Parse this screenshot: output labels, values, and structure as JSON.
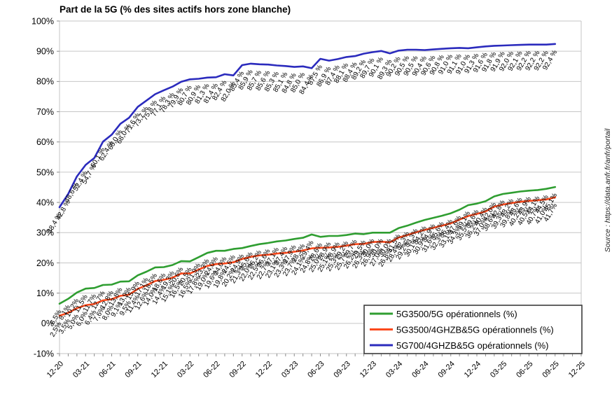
{
  "title": "Part de la 5G (% des sites actifs hors zone blanche)",
  "source_note": "Source : https://data.anfr.fr/anfr/portail",
  "chart_data": {
    "type": "line",
    "title": "Part de la 5G (% des sites actifs hors zone blanche)",
    "xlabel": "",
    "ylabel": "",
    "ylim": [
      -10,
      100
    ],
    "y_tick_step": 10,
    "y_tick_labels": [
      "100%",
      "90%",
      "80%",
      "70%",
      "60%",
      "50%",
      "40%",
      "30%",
      "20%",
      "10%",
      "0%",
      "-10%"
    ],
    "x_monthly_slots": 61,
    "x_first_month": "12-20",
    "x_last_data_month": "09-25",
    "x_tick_every_months": 3,
    "x_tick_labels": [
      "12-20",
      "03-21",
      "06-21",
      "09-21",
      "12-21",
      "03-22",
      "06-22",
      "09-22",
      "12-22",
      "03-23",
      "06-23",
      "09-23",
      "12-23",
      "03-24",
      "06-24",
      "09-24",
      "12-24",
      "03-25",
      "06-25",
      "09-25",
      "12-25"
    ],
    "grid": true,
    "legend_position": "inside-bottom-right",
    "decimal_separator": ",",
    "colors": {
      "grid": "#c6c6c6",
      "tick": "#8c8c8c",
      "legend_border": "#3c3c3c",
      "label_text": "#000000"
    },
    "series": [
      {
        "name": "5G3500/5G opérationnels (%)",
        "color": "#2f9e31",
        "label_suffix": "%",
        "values": [
          6.5,
          8.1,
          10.2,
          11.5,
          11.7,
          12.7,
          12.8,
          13.8,
          13.9,
          15.9,
          17.1,
          18.5,
          18.6,
          19.3,
          20.6,
          20.5,
          21.9,
          23.3,
          24.0,
          24.0,
          24.6,
          24.9,
          25.6,
          26.2,
          26.6,
          27.1,
          27.4,
          27.9,
          28.3,
          29.4,
          28.6,
          28.9,
          28.9,
          29.2,
          29.7,
          29.5,
          30.0,
          30.0,
          30.0,
          31.5,
          32.3,
          33.3,
          34.2,
          34.9,
          35.6,
          36.4,
          37.6,
          39.1,
          39.6,
          40.4,
          42.0,
          42.8,
          43.2,
          43.6,
          43.9,
          44.1,
          44.5,
          45.1
        ]
      },
      {
        "name": "5G3500/4GHZB&5G opérationnels (%)",
        "color": "#fb491c",
        "label_suffix": "%",
        "values": [
          2.5,
          3.5,
          5.0,
          6.0,
          6.4,
          7.6,
          8.0,
          9.1,
          9.5,
          11.4,
          12.6,
          14.0,
          14.4,
          15.1,
          16.5,
          16.5,
          17.8,
          19.0,
          19.6,
          19.8,
          20.2,
          21.3,
          22.0,
          22.5,
          22.7,
          23.1,
          23.3,
          23.7,
          24.1,
          24.8,
          25.0,
          25.1,
          25.3,
          25.7,
          26.2,
          26.3,
          26.9,
          27.0,
          26.8,
          28.4,
          29.2,
          30.1,
          30.9,
          31.6,
          32.3,
          33.1,
          34.3,
          35.5,
          36.2,
          37.0,
          38.6,
          39.3,
          39.8,
          40.2,
          40.5,
          40.7,
          41.0,
          41.7
        ]
      },
      {
        "name": "5G700/4GHZB&5G opérationnels (%)",
        "color": "#2b2bbd",
        "label_suffix": " %",
        "values": [
          38.4,
          42.8,
          48.6,
          52.4,
          54.7,
          60.1,
          62.4,
          66.0,
          68.0,
          71.6,
          73.7,
          75.8,
          77.1,
          78.3,
          79.9,
          80.7,
          80.9,
          81.3,
          81.4,
          82.4,
          82.0,
          85.4,
          85.9,
          85.7,
          85.6,
          85.3,
          85.1,
          84.8,
          85.0,
          84.4,
          87.5,
          86.9,
          87.4,
          88.1,
          88.4,
          89.2,
          89.7,
          90.1,
          89.3,
          90.2,
          90.5,
          90.5,
          90.4,
          90.6,
          90.8,
          91.0,
          91.1,
          91.0,
          91.3,
          91.6,
          91.8,
          91.9,
          92.0,
          92.1,
          92.2,
          92.2,
          92.2,
          92.4
        ]
      }
    ]
  }
}
